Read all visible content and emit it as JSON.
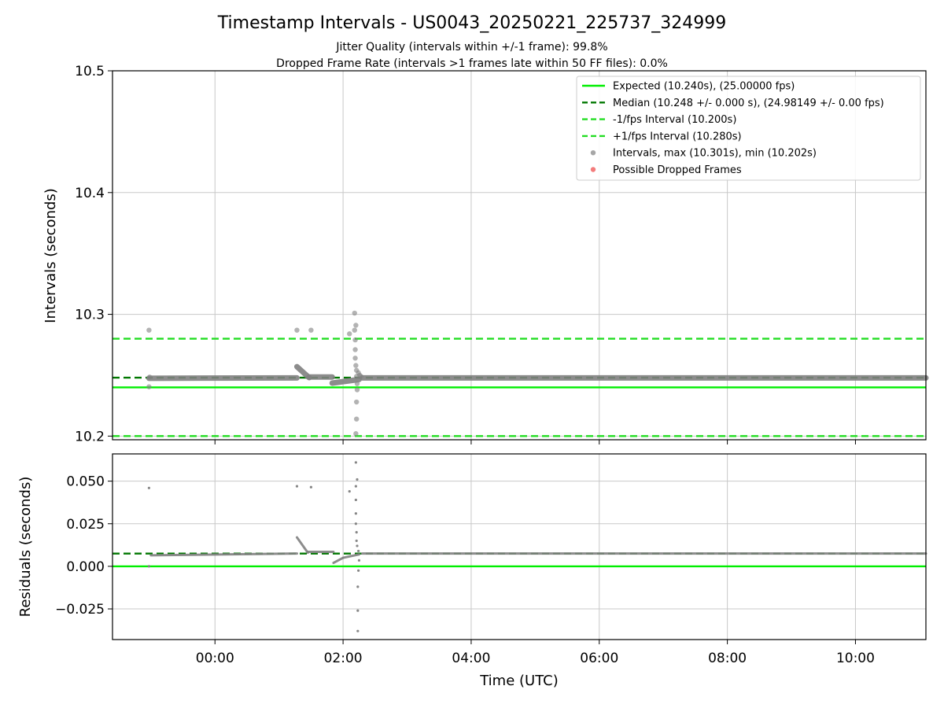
{
  "title": "Timestamp Intervals - US0043_20250221_225737_324999",
  "subtitle_1": "Jitter Quality (intervals within +/-1 frame): 99.8%",
  "subtitle_2": "Dropped Frame Rate (intervals >1 frames late within 50 FF files): 0.0%",
  "colors": {
    "expected": "#00ee00",
    "median": "#007700",
    "bounds": "#22dd22",
    "points": "#808080",
    "dropped": "#ee4444",
    "grid": "#c8c8c8"
  },
  "x_axis": {
    "xlabel": "Time (UTC)",
    "xlim_hours": [
      -1.6,
      11.1
    ],
    "ticks": [
      0,
      2,
      4,
      6,
      8,
      10
    ],
    "tick_labels": [
      "00:00",
      "02:00",
      "04:00",
      "06:00",
      "08:00",
      "10:00"
    ]
  },
  "chart_data": [
    {
      "type": "scatter",
      "ylabel": "Intervals (seconds)",
      "ylim": [
        10.197,
        10.5
      ],
      "yticks": [
        10.2,
        10.3,
        10.4,
        10.5
      ],
      "ytick_labels": [
        "10.2",
        "10.3",
        "10.4",
        "10.5"
      ],
      "grid": true,
      "legend_position": "top-right",
      "legend": [
        {
          "style": "solid",
          "color_key": "expected",
          "label": "Expected (10.240s), (25.00000 fps)"
        },
        {
          "style": "dashed",
          "color_key": "median",
          "label": "Median (10.248 +/- 0.000 s), (24.98149 +/- 0.00 fps)"
        },
        {
          "style": "dashed",
          "color_key": "bounds",
          "label": "-1/fps Interval (10.200s)"
        },
        {
          "style": "dashed",
          "color_key": "bounds",
          "label": "+1/fps Interval (10.280s)"
        },
        {
          "style": "dot",
          "color_key": "points",
          "label": "Intervals, max (10.301s), min (10.202s)"
        },
        {
          "style": "dot",
          "color_key": "dropped",
          "label": "Possible Dropped Frames"
        }
      ],
      "reference_lines": [
        {
          "y": 10.24,
          "style": "solid",
          "color_key": "expected"
        },
        {
          "y": 10.248,
          "style": "dashed",
          "color_key": "median"
        },
        {
          "y": 10.2,
          "style": "dashed",
          "color_key": "bounds"
        },
        {
          "y": 10.28,
          "style": "dashed",
          "color_key": "bounds"
        }
      ],
      "baseline_segments": [
        {
          "x": [
            -1.03,
            1.28
          ],
          "y": [
            10.2475,
            10.2478
          ]
        },
        {
          "x": [
            1.28,
            1.47
          ],
          "y": [
            10.257,
            10.248
          ]
        },
        {
          "x": [
            1.47,
            1.83
          ],
          "y": [
            10.2485,
            10.2485
          ]
        },
        {
          "x": [
            1.83,
            2.25
          ],
          "y": [
            10.2435,
            10.2465
          ]
        },
        {
          "x": [
            2.3,
            11.1
          ],
          "y": [
            10.2478,
            10.2478
          ]
        }
      ],
      "points": [
        {
          "x": -1.03,
          "y": 10.287
        },
        {
          "x": -1.03,
          "y": 10.2405
        },
        {
          "x": -1.02,
          "y": 10.2485
        },
        {
          "x": 1.28,
          "y": 10.287
        },
        {
          "x": 1.5,
          "y": 10.287
        },
        {
          "x": 2.1,
          "y": 10.284
        },
        {
          "x": 2.18,
          "y": 10.301
        },
        {
          "x": 2.18,
          "y": 10.287
        },
        {
          "x": 2.2,
          "y": 10.291
        },
        {
          "x": 2.19,
          "y": 10.279
        },
        {
          "x": 2.19,
          "y": 10.271
        },
        {
          "x": 2.19,
          "y": 10.264
        },
        {
          "x": 2.2,
          "y": 10.258
        },
        {
          "x": 2.21,
          "y": 10.254
        },
        {
          "x": 2.21,
          "y": 10.249
        },
        {
          "x": 2.22,
          "y": 10.243
        },
        {
          "x": 2.22,
          "y": 10.238
        },
        {
          "x": 2.21,
          "y": 10.228
        },
        {
          "x": 2.21,
          "y": 10.214
        },
        {
          "x": 2.2,
          "y": 10.202
        },
        {
          "x": 2.24,
          "y": 10.252
        },
        {
          "x": 2.26,
          "y": 10.25
        },
        {
          "x": 2.28,
          "y": 10.249
        }
      ]
    },
    {
      "type": "scatter",
      "ylabel": "Residuals (seconds)",
      "ylim": [
        -0.043,
        0.066
      ],
      "yticks": [
        -0.025,
        0,
        0.025,
        0.05
      ],
      "ytick_labels": [
        "−0.025",
        "0.000",
        "0.025",
        "0.050"
      ],
      "grid": true,
      "reference_lines": [
        {
          "y": 0,
          "style": "solid",
          "color_key": "expected"
        },
        {
          "y": 0.0075,
          "style": "dashed",
          "color_key": "median"
        }
      ],
      "baseline_segments": [
        {
          "x": [
            -1.0,
            1.28
          ],
          "y": [
            0.0065,
            0.0075
          ]
        },
        {
          "x": [
            1.28,
            1.45
          ],
          "y": [
            0.017,
            0.008
          ]
        },
        {
          "x": [
            1.45,
            1.85
          ],
          "y": [
            0.0085,
            0.0085
          ]
        },
        {
          "x": [
            1.85,
            2.0
          ],
          "y": [
            0.002,
            0.005
          ]
        },
        {
          "x": [
            2.0,
            2.25
          ],
          "y": [
            0.005,
            0.007
          ]
        },
        {
          "x": [
            2.3,
            11.1
          ],
          "y": [
            0.0075,
            0.0075
          ]
        }
      ],
      "points": [
        {
          "x": -1.03,
          "y": 0.046
        },
        {
          "x": -1.03,
          "y": 0.0
        },
        {
          "x": 1.28,
          "y": 0.047
        },
        {
          "x": 1.5,
          "y": 0.0465
        },
        {
          "x": 2.1,
          "y": 0.044
        },
        {
          "x": 2.2,
          "y": 0.061
        },
        {
          "x": 2.22,
          "y": 0.051
        },
        {
          "x": 2.2,
          "y": 0.047
        },
        {
          "x": 2.2,
          "y": 0.039
        },
        {
          "x": 2.2,
          "y": 0.031
        },
        {
          "x": 2.2,
          "y": 0.025
        },
        {
          "x": 2.21,
          "y": 0.02
        },
        {
          "x": 2.21,
          "y": 0.015
        },
        {
          "x": 2.22,
          "y": 0.012
        },
        {
          "x": 2.24,
          "y": 0.009
        },
        {
          "x": 2.25,
          "y": 0.0035
        },
        {
          "x": 2.24,
          "y": -0.0025
        },
        {
          "x": 2.23,
          "y": -0.012
        },
        {
          "x": 2.23,
          "y": -0.026
        },
        {
          "x": 2.23,
          "y": -0.038
        }
      ]
    }
  ]
}
